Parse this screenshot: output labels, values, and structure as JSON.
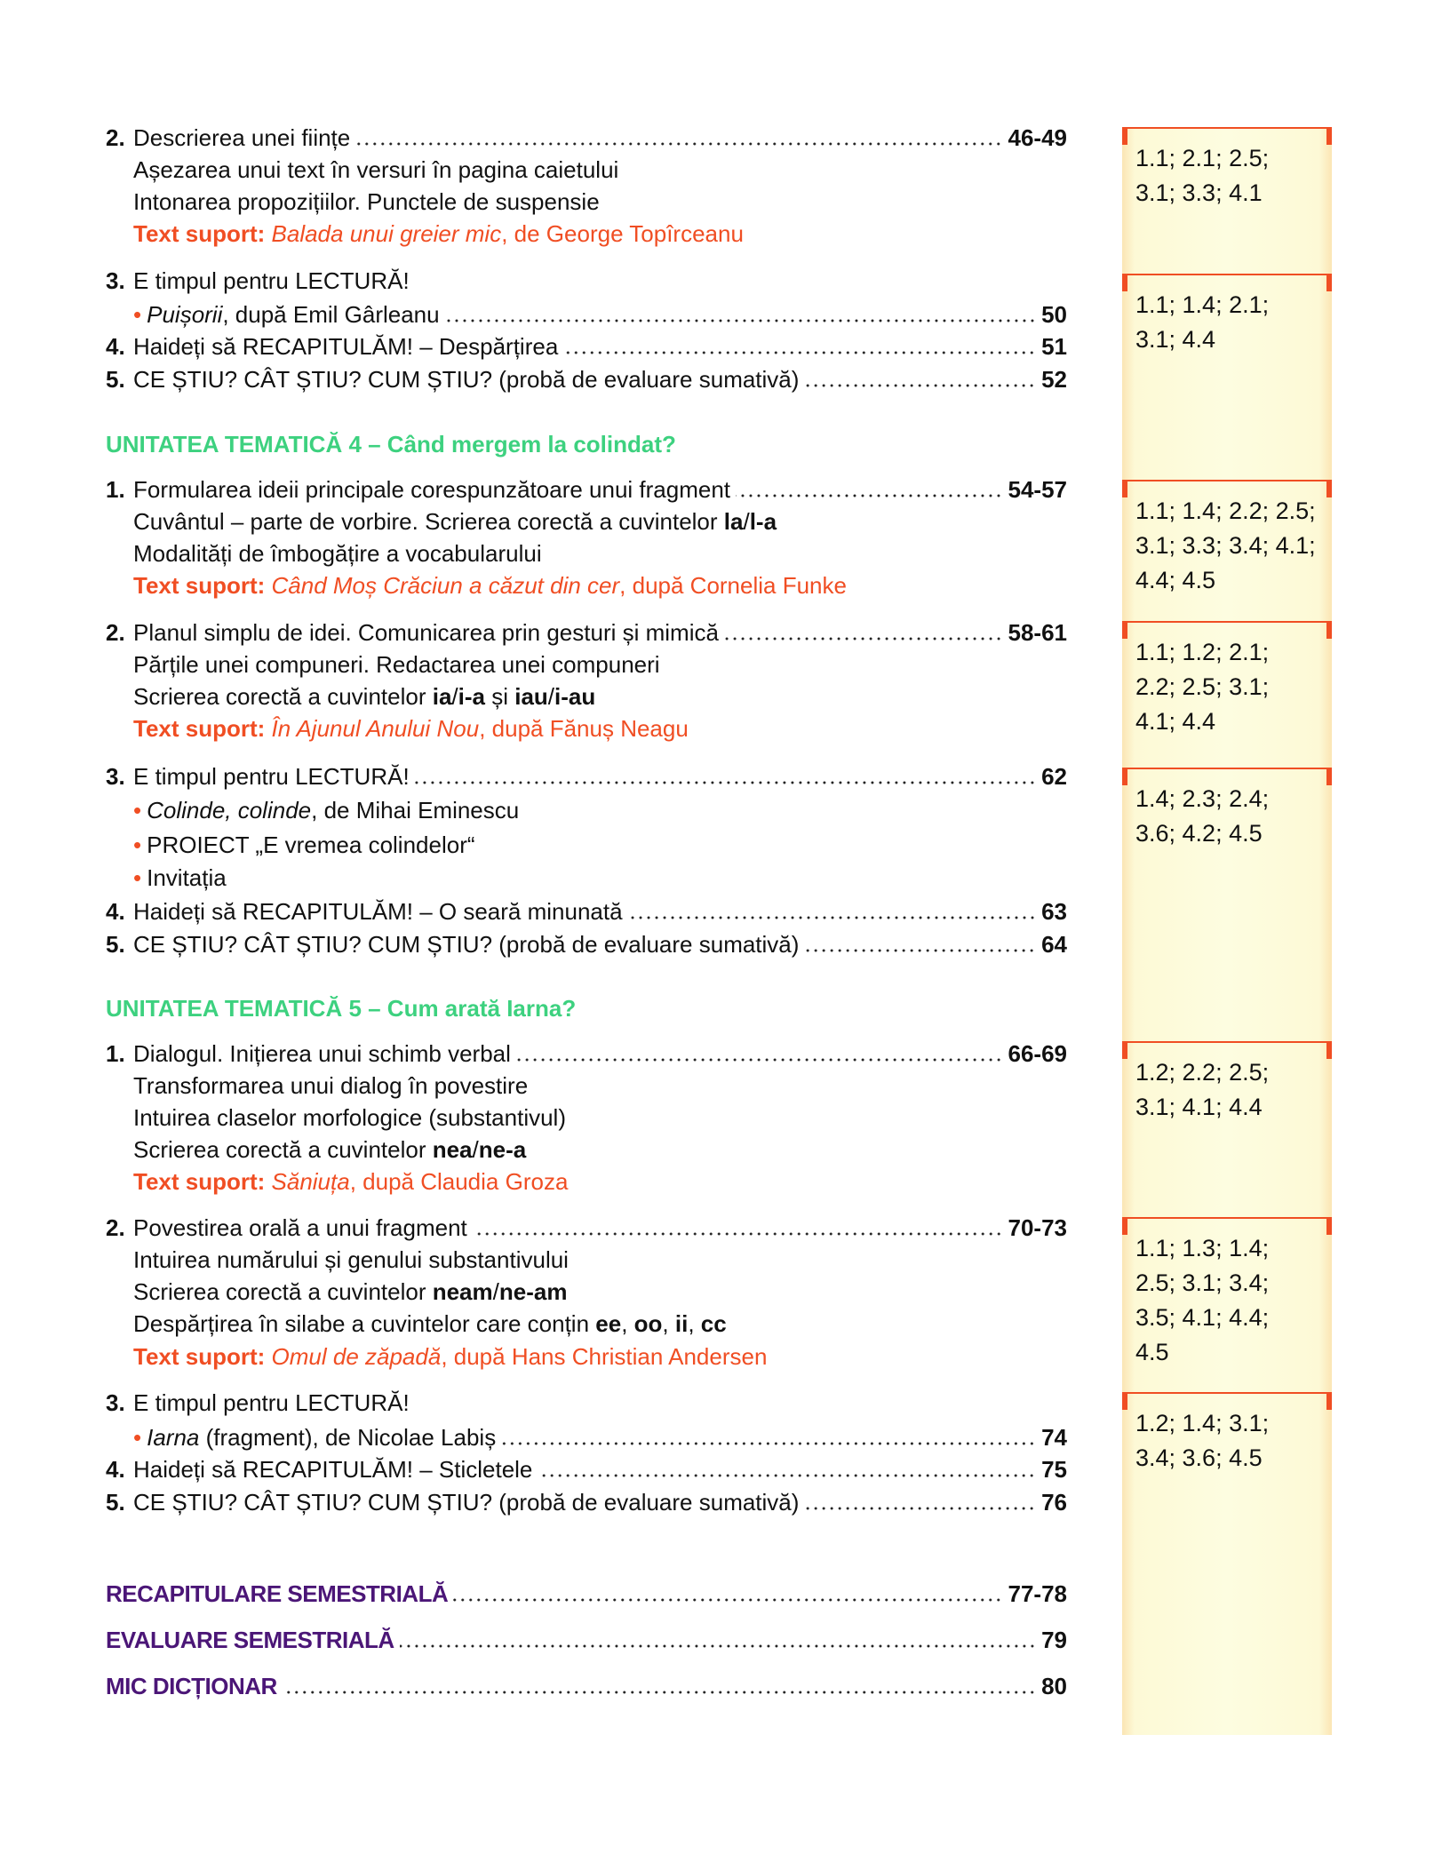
{
  "colors": {
    "accent_orange": "#f04e23",
    "unit_green": "#3dd17f",
    "section_purple": "#4b1677",
    "column_bg": "#fdfde0"
  },
  "entries": [
    {
      "num": "2.",
      "parts": [
        {
          "t": "Descrierea unei ființe"
        }
      ],
      "page": "46-49"
    },
    {
      "parts": [
        {
          "t": "Așezarea unui text în versuri în pagina caietului"
        }
      ]
    },
    {
      "parts": [
        {
          "t": "Intonarea propozițiilor. Punctele de suspensie"
        }
      ]
    },
    {
      "parts": [
        {
          "t": "Text suport:",
          "s": "ob"
        },
        {
          "t": " Balada unui greier mic",
          "s": "oi"
        },
        {
          "t": ", de George Topîrceanu",
          "s": "o"
        }
      ]
    },
    {
      "num": "3.",
      "parts": [
        {
          "t": "E timpul pentru LECTURĂ!"
        }
      ]
    },
    {
      "bullet": "•",
      "parts": [
        {
          "t": "Puișorii",
          "s": "i"
        },
        {
          "t": ", după Emil Gârleanu"
        }
      ],
      "page": "50"
    },
    {
      "num": "4.",
      "parts": [
        {
          "t": "Haideți să RECAPITULĂM! – Despărțirea"
        }
      ],
      "page": "51"
    },
    {
      "num": "5.",
      "parts": [
        {
          "t": "CE ȘTIU? CÂT ȘTIU? CUM ȘTIU? (probă de evaluare sumativă)"
        }
      ],
      "page": "52"
    },
    {
      "heading": "green",
      "parts": [
        {
          "t": "UNITATEA TEMATICĂ 4 – Când mergem la colindat?"
        }
      ]
    },
    {
      "num": "1.",
      "parts": [
        {
          "t": "Formularea ideii principale corespunzătoare unui fragment"
        }
      ],
      "page": "54-57"
    },
    {
      "parts": [
        {
          "t": "Cuvântul – parte de vorbire. Scrierea corectă a cuvintelor "
        },
        {
          "t": "la",
          "s": "b"
        },
        {
          "t": "/"
        },
        {
          "t": "l-a",
          "s": "b"
        }
      ]
    },
    {
      "parts": [
        {
          "t": "Modalități de îmbogățire a vocabularului"
        }
      ]
    },
    {
      "parts": [
        {
          "t": "Text suport:",
          "s": "ob"
        },
        {
          "t": " Când Moș Crăciun a căzut din cer",
          "s": "oi"
        },
        {
          "t": ", după Cornelia Funke",
          "s": "o"
        }
      ]
    },
    {
      "num": "2.",
      "parts": [
        {
          "t": "Planul simplu de idei. Comunicarea prin gesturi și mimică"
        }
      ],
      "page": "58-61"
    },
    {
      "parts": [
        {
          "t": "Părțile unei compuneri. Redactarea unei compuneri"
        }
      ]
    },
    {
      "parts": [
        {
          "t": "Scrierea corectă a cuvintelor "
        },
        {
          "t": "ia",
          "s": "b"
        },
        {
          "t": "/"
        },
        {
          "t": "i-a",
          "s": "b"
        },
        {
          "t": " și "
        },
        {
          "t": "iau",
          "s": "b"
        },
        {
          "t": "/"
        },
        {
          "t": "i-au",
          "s": "b"
        }
      ]
    },
    {
      "parts": [
        {
          "t": "Text suport:",
          "s": "ob"
        },
        {
          "t": " În Ajunul Anului Nou",
          "s": "oi"
        },
        {
          "t": ", după Fănuș Neagu",
          "s": "o"
        }
      ]
    },
    {
      "num": "3.",
      "parts": [
        {
          "t": "E timpul pentru LECTURĂ!"
        }
      ],
      "page": "62"
    },
    {
      "bullet": "•",
      "parts": [
        {
          "t": "Colinde, colinde",
          "s": "i"
        },
        {
          "t": ", de Mihai Eminescu"
        }
      ]
    },
    {
      "bullet": "•",
      "parts": [
        {
          "t": "PROIECT „E vremea colindelor“"
        }
      ]
    },
    {
      "bullet": "•",
      "parts": [
        {
          "t": "Invitația"
        }
      ]
    },
    {
      "num": "4.",
      "parts": [
        {
          "t": "Haideți să RECAPITULĂM! – O seară minunată"
        }
      ],
      "page": "63"
    },
    {
      "num": "5.",
      "parts": [
        {
          "t": "CE ȘTIU? CÂT ȘTIU? CUM ȘTIU? (probă de evaluare sumativă)"
        }
      ],
      "page": "64"
    },
    {
      "heading": "green",
      "parts": [
        {
          "t": "UNITATEA TEMATICĂ 5 – Cum arată Iarna?"
        }
      ]
    },
    {
      "num": "1.",
      "parts": [
        {
          "t": "Dialogul. Inițierea unui schimb verbal"
        }
      ],
      "page": "66-69"
    },
    {
      "parts": [
        {
          "t": "Transformarea unui dialog în povestire"
        }
      ]
    },
    {
      "parts": [
        {
          "t": "Intuirea claselor morfologice (substantivul)"
        }
      ]
    },
    {
      "parts": [
        {
          "t": "Scrierea corectă a cuvintelor "
        },
        {
          "t": "nea",
          "s": "b"
        },
        {
          "t": "/"
        },
        {
          "t": "ne-a",
          "s": "b"
        }
      ]
    },
    {
      "parts": [
        {
          "t": "Text suport:",
          "s": "ob"
        },
        {
          "t": " Săniuța",
          "s": "oi"
        },
        {
          "t": ", după Claudia Groza",
          "s": "o"
        }
      ]
    },
    {
      "num": "2.",
      "parts": [
        {
          "t": "Povestirea orală a unui fragment"
        }
      ],
      "page": "70-73"
    },
    {
      "parts": [
        {
          "t": "Intuirea numărului și genului substantivului"
        }
      ]
    },
    {
      "parts": [
        {
          "t": "Scrierea corectă a cuvintelor "
        },
        {
          "t": "neam",
          "s": "b"
        },
        {
          "t": "/"
        },
        {
          "t": "ne-am",
          "s": "b"
        }
      ]
    },
    {
      "parts": [
        {
          "t": "Despărțirea în silabe a cuvintelor care conțin "
        },
        {
          "t": "ee",
          "s": "b"
        },
        {
          "t": ", "
        },
        {
          "t": "oo",
          "s": "b"
        },
        {
          "t": ", "
        },
        {
          "t": "ii",
          "s": "b"
        },
        {
          "t": ", "
        },
        {
          "t": "cc",
          "s": "b"
        }
      ]
    },
    {
      "parts": [
        {
          "t": "Text suport:",
          "s": "ob"
        },
        {
          "t": " Omul de zăpadă",
          "s": "oi"
        },
        {
          "t": ", după Hans Christian Andersen",
          "s": "o"
        }
      ]
    },
    {
      "num": "3.",
      "parts": [
        {
          "t": "E timpul pentru LECTURĂ!"
        }
      ]
    },
    {
      "bullet": "•",
      "parts": [
        {
          "t": "Iarna",
          "s": "i"
        },
        {
          "t": " (fragment), de Nicolae Labiș"
        }
      ],
      "page": "74"
    },
    {
      "num": "4.",
      "parts": [
        {
          "t": "Haideți să RECAPITULĂM! – Sticletele"
        }
      ],
      "page": "75"
    },
    {
      "num": "5.",
      "parts": [
        {
          "t": "CE ȘTIU? CÂT ȘTIU? CUM ȘTIU? (probă de evaluare sumativă)"
        }
      ],
      "page": "76"
    },
    {
      "heading": "purple",
      "parts": [
        {
          "t": "RECAPITULARE SEMESTRIALĂ"
        }
      ],
      "page": "77-78"
    },
    {
      "heading": "purple",
      "parts": [
        {
          "t": "EVALUARE SEMESTRIALĂ"
        }
      ],
      "page": "79"
    },
    {
      "heading": "purple",
      "parts": [
        {
          "t": "MIC DICȚIONAR"
        }
      ],
      "page": "80"
    }
  ],
  "competences": [
    [
      "1.1; 2.1; 2.5;",
      "3.1; 3.3; 4.1"
    ],
    [
      "1.1; 1.4; 2.1;",
      "3.1; 4.4"
    ],
    [
      "1.1; 1.4; 2.2; 2.5;",
      "3.1; 3.3; 3.4; 4.1;",
      "4.4; 4.5"
    ],
    [
      "1.1; 1.2; 2.1;",
      "2.2; 2.5; 3.1;",
      "4.1; 4.4"
    ],
    [
      "1.4; 2.3; 2.4;",
      "3.6; 4.2; 4.5"
    ],
    [
      "1.2; 2.2; 2.5;",
      "3.1; 4.1; 4.4"
    ],
    [
      "1.1; 1.3; 1.4;",
      "2.5; 3.1; 3.4;",
      "3.5; 4.1; 4.4;",
      "4.5"
    ],
    [
      "1.2; 1.4; 3.1;",
      "3.4; 3.6; 4.5"
    ]
  ]
}
